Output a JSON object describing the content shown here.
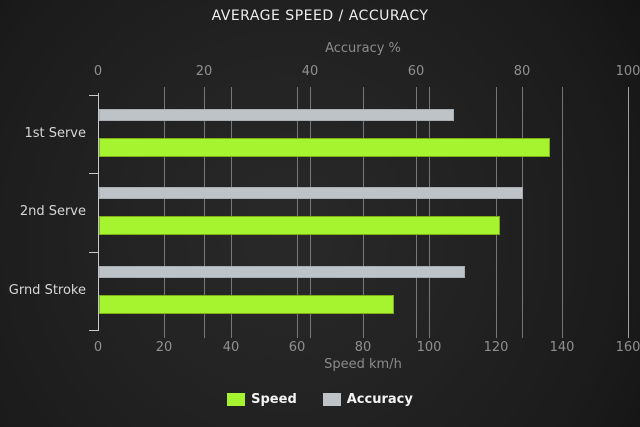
{
  "title": "AVERAGE SPEED / ACCURACY",
  "chart_data": {
    "type": "bar",
    "orientation": "horizontal",
    "categories": [
      "1st Serve",
      "2nd Serve",
      "Grnd Stroke"
    ],
    "series": [
      {
        "name": "Speed",
        "axis": "speed",
        "values": [
          136,
          121,
          89
        ],
        "color": "#a6f42f"
      },
      {
        "name": "Accuracy",
        "axis": "accuracy",
        "values": [
          67,
          80,
          69
        ],
        "color": "#bdc3c7"
      }
    ],
    "axes": {
      "accuracy": {
        "label": "Accuracy %",
        "position": "top",
        "min": 0,
        "max": 100,
        "ticks": [
          0,
          20,
          40,
          60,
          80,
          100
        ]
      },
      "speed": {
        "label": "Speed km/h",
        "position": "bottom",
        "min": 0,
        "max": 160,
        "ticks": [
          0,
          20,
          40,
          60,
          80,
          100,
          120,
          140,
          160
        ]
      }
    },
    "legend": {
      "position": "bottom",
      "items": [
        "Speed",
        "Accuracy"
      ]
    },
    "grid": true
  },
  "colors": {
    "background_center": "#272727",
    "background_edge": "#161616",
    "title": "#ededed",
    "axis_title": "#8b8b8b",
    "tick_label": "#8f8f8f",
    "category_label": "#d6d6d6",
    "gridline": "rgba(200,205,208,0.5)",
    "axis_line": "#c7cacc",
    "speed_bar": "#a6f42f",
    "speed_bar_border": "#7fae19",
    "accuracy_bar": "#bdc3c7",
    "legend_text": "#f2f2f2"
  }
}
